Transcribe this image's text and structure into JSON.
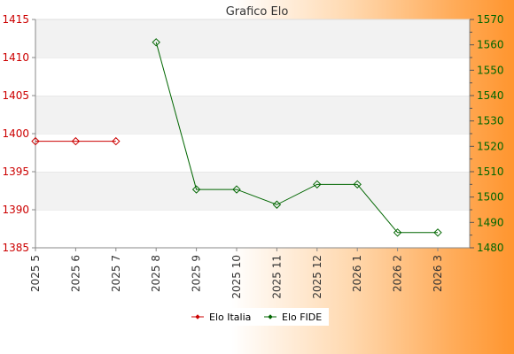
{
  "colors": {
    "italia": "#cc0000",
    "fide": "#006600",
    "plot_band": "#f2f2f2",
    "plot_bg": "#ffffff",
    "gridline": "#dddddd"
  },
  "chart_data": {
    "type": "line",
    "title": "Grafico Elo",
    "categories": [
      "2025 5",
      "2025 6",
      "2025 7",
      "2025 8",
      "2025 9",
      "2025 10",
      "2025 11",
      "2025 12",
      "2026 1",
      "2026 2",
      "2026 3"
    ],
    "left_axis": {
      "ylim": [
        1385,
        1415
      ],
      "ticks": [
        1385,
        1390,
        1395,
        1400,
        1405,
        1410,
        1415
      ]
    },
    "right_axis": {
      "ylim": [
        1480,
        1570
      ],
      "ticks": [
        1480,
        1490,
        1500,
        1510,
        1520,
        1530,
        1540,
        1550,
        1560,
        1570
      ]
    },
    "series": [
      {
        "name": "Elo Italia",
        "axis": "left",
        "color": "#cc0000",
        "values": [
          1399,
          1399,
          1399,
          null,
          null,
          null,
          null,
          null,
          null,
          null,
          null
        ]
      },
      {
        "name": "Elo FIDE",
        "axis": "right",
        "color": "#006600",
        "values": [
          null,
          null,
          null,
          1561,
          1503,
          1503,
          1497,
          1505,
          1505,
          1486,
          1486
        ]
      }
    ],
    "legend_position": "bottom-center",
    "grid": true
  }
}
